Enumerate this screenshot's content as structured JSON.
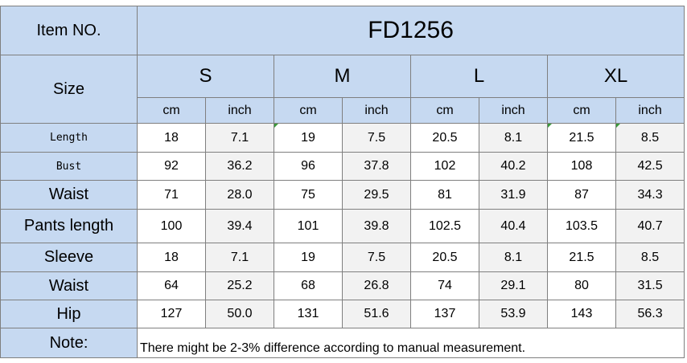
{
  "item_no_label": "Item NO.",
  "item_no_value": "FD1256",
  "size_label": "Size",
  "sizes": [
    "S",
    "M",
    "L",
    "XL"
  ],
  "units": [
    "cm",
    "inch"
  ],
  "rows": [
    {
      "label": "Length",
      "values": [
        "18",
        "7.1",
        "19",
        "7.5",
        "20.5",
        "8.1",
        "21.5",
        "8.5"
      ]
    },
    {
      "label": "Bust",
      "values": [
        "92",
        "36.2",
        "96",
        "37.8",
        "102",
        "40.2",
        "108",
        "42.5"
      ]
    },
    {
      "label": "Waist",
      "values": [
        "71",
        "28.0",
        "75",
        "29.5",
        "81",
        "31.9",
        "87",
        "34.3"
      ]
    },
    {
      "label": "Pants length",
      "values": [
        "100",
        "39.4",
        "101",
        "39.8",
        "102.5",
        "40.4",
        "103.5",
        "40.7"
      ]
    },
    {
      "label": "Sleeve",
      "values": [
        "18",
        "7.1",
        "19",
        "7.5",
        "20.5",
        "8.1",
        "21.5",
        "8.5"
      ]
    },
    {
      "label": "Waist",
      "values": [
        "64",
        "25.2",
        "68",
        "26.8",
        "74",
        "29.1",
        "80",
        "31.5"
      ]
    },
    {
      "label": "Hip",
      "values": [
        "127",
        "50.0",
        "131",
        "51.6",
        "137",
        "53.9",
        "143",
        "56.3"
      ]
    }
  ],
  "note_label": "Note:",
  "note_text": "There might be 2-3% difference according to manual measurement.",
  "colors": {
    "header_bg": "#c6d9f1",
    "border": "#7f7f7f",
    "inch_bg": "#f2f2f2",
    "marker": "#3a9a3a"
  }
}
